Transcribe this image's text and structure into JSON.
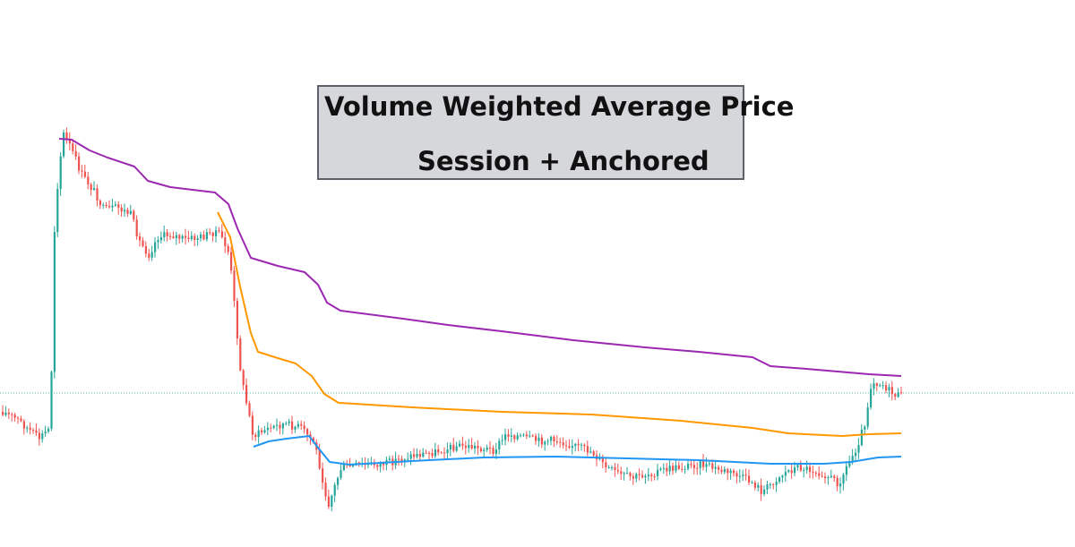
{
  "chart_data": {
    "type": "line",
    "title": "Volume Weighted Average Price",
    "subtitle": "Session + Anchored",
    "grid": false,
    "reference_price": 439,
    "colors": {
      "up": "#26a69a",
      "down": "#ef5350",
      "vwap_purple": "#9c27b0",
      "vwap_orange": "#ff9800",
      "vwap_blue": "#2196f3",
      "reference_line": "#26a69a"
    },
    "series": [
      {
        "key": "vwap_purple",
        "values": [
          [
            66,
            155
          ],
          [
            80,
            156
          ],
          [
            100,
            168
          ],
          [
            120,
            176
          ],
          [
            150,
            186
          ],
          [
            165,
            202
          ],
          [
            190,
            209
          ],
          [
            240,
            215
          ],
          [
            255,
            228
          ],
          [
            265,
            255
          ],
          [
            280,
            288
          ],
          [
            310,
            297
          ],
          [
            340,
            304
          ],
          [
            355,
            318
          ],
          [
            365,
            338
          ],
          [
            380,
            347
          ],
          [
            450,
            356
          ],
          [
            500,
            363
          ],
          [
            560,
            370
          ],
          [
            640,
            380
          ],
          [
            720,
            388
          ],
          [
            780,
            393
          ],
          [
            840,
            399
          ],
          [
            860,
            409
          ],
          [
            900,
            412
          ],
          [
            970,
            418
          ],
          [
            1006,
            420
          ]
        ]
      },
      {
        "key": "vwap_orange",
        "values": [
          [
            243,
            237
          ],
          [
            257,
            265
          ],
          [
            268,
            320
          ],
          [
            280,
            372
          ],
          [
            288,
            393
          ],
          [
            310,
            400
          ],
          [
            330,
            406
          ],
          [
            348,
            420
          ],
          [
            362,
            440
          ],
          [
            378,
            450
          ],
          [
            460,
            455
          ],
          [
            560,
            460
          ],
          [
            660,
            463
          ],
          [
            760,
            470
          ],
          [
            840,
            478
          ],
          [
            880,
            484
          ],
          [
            940,
            487
          ],
          [
            970,
            485
          ],
          [
            1006,
            484
          ]
        ]
      },
      {
        "key": "vwap_blue",
        "values": [
          [
            283,
            499
          ],
          [
            300,
            493
          ],
          [
            320,
            490
          ],
          [
            345,
            487
          ],
          [
            355,
            500
          ],
          [
            368,
            516
          ],
          [
            390,
            519
          ],
          [
            460,
            515
          ],
          [
            540,
            511
          ],
          [
            620,
            510
          ],
          [
            700,
            512
          ],
          [
            780,
            514
          ],
          [
            860,
            518
          ],
          [
            920,
            518
          ],
          [
            950,
            516
          ],
          [
            980,
            511
          ],
          [
            1006,
            510
          ]
        ]
      }
    ]
  }
}
